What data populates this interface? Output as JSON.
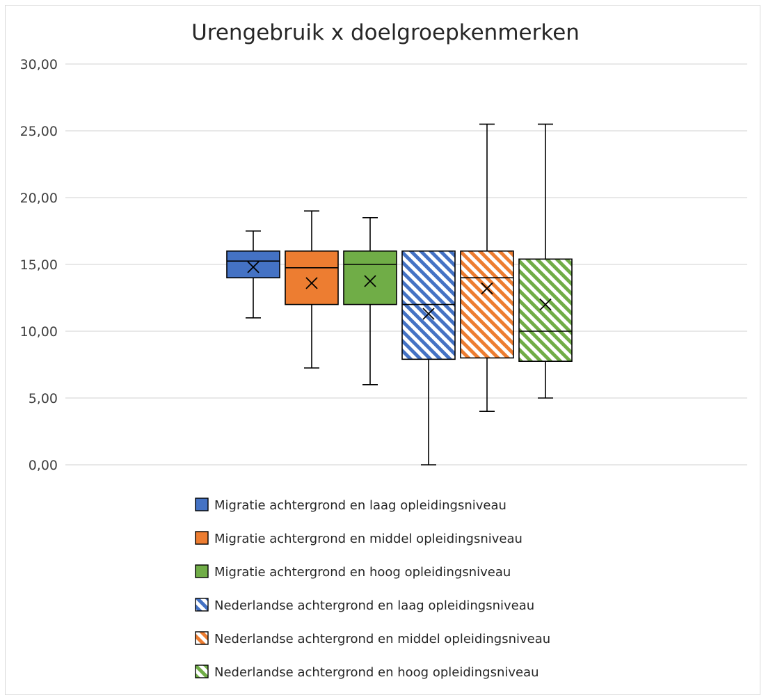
{
  "chart_data": {
    "type": "boxplot",
    "title": "Urengebruik x doelgroepkenmerken",
    "xlabel": "",
    "ylabel": "",
    "ylim": [
      0,
      30
    ],
    "y_tick_step": 5,
    "y_tick_labels": [
      "0,00",
      "5,00",
      "10,00",
      "15,00",
      "20,00",
      "25,00",
      "30,00"
    ],
    "grid": true,
    "legend_position": "bottom",
    "series": [
      {
        "name": "Migratie achtergrond en laag opleidingsniveau",
        "color": "#4472c4",
        "fill": "solid",
        "min": 11.0,
        "q1": 14.0,
        "median": 15.25,
        "q3": 16.0,
        "max": 17.5,
        "mean": 14.8
      },
      {
        "name": "Migratie achtergrond en middel opleidingsniveau",
        "color": "#ed7d31",
        "fill": "solid",
        "min": 7.25,
        "q1": 12.0,
        "median": 14.75,
        "q3": 16.0,
        "max": 19.0,
        "mean": 13.6
      },
      {
        "name": "Migratie achtergrond en hoog opleidingsniveau",
        "color": "#70ad47",
        "fill": "solid",
        "min": 6.0,
        "q1": 12.0,
        "median": 15.0,
        "q3": 16.0,
        "max": 18.5,
        "mean": 13.75
      },
      {
        "name": "Nederlandse achtergrond en laag opleidingsniveau",
        "color": "#4472c4",
        "fill": "hatched",
        "min": 0.0,
        "q1": 7.9,
        "median": 12.0,
        "q3": 16.0,
        "max": 16.0,
        "mean": 11.3
      },
      {
        "name": "Nederlandse achtergrond en middel opleidingsniveau",
        "color": "#ed7d31",
        "fill": "hatched",
        "min": 4.0,
        "q1": 8.0,
        "median": 14.0,
        "q3": 16.0,
        "max": 25.5,
        "mean": 13.2
      },
      {
        "name": "Nederlandse achtergrond en hoog opleidingsniveau",
        "color": "#70ad47",
        "fill": "hatched",
        "min": 5.0,
        "q1": 7.75,
        "median": 10.0,
        "q3": 15.4,
        "max": 25.5,
        "mean": 12.0
      }
    ]
  }
}
